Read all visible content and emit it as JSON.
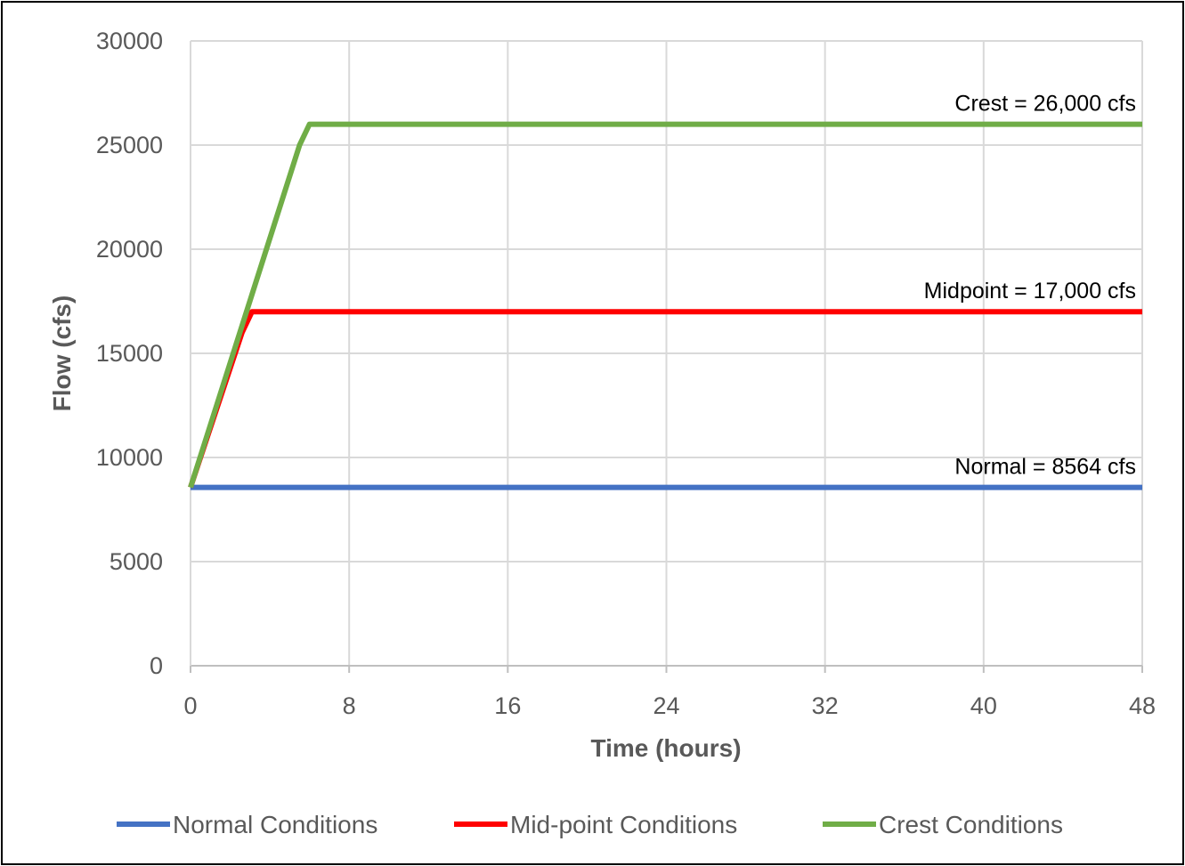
{
  "chart_data": {
    "type": "line",
    "title": "",
    "xlabel": "Time (hours)",
    "ylabel": "Flow (cfs)",
    "xlim": [
      0,
      48
    ],
    "ylim": [
      0,
      30000
    ],
    "xticks": [
      0,
      8,
      16,
      24,
      32,
      40,
      48
    ],
    "yticks": [
      0,
      5000,
      10000,
      15000,
      20000,
      25000,
      30000
    ],
    "x_tick_labels": [
      "0",
      "8",
      "16",
      "24",
      "32",
      "40",
      "48"
    ],
    "y_tick_labels": [
      "0",
      "5000",
      "10000",
      "15000",
      "20000",
      "25000",
      "30000"
    ],
    "grid": true,
    "legend_position": "bottom",
    "series": [
      {
        "name": "Normal Conditions",
        "color": "#4472C4",
        "x": [
          0,
          48
        ],
        "y": [
          8564,
          8564
        ]
      },
      {
        "name": "Mid-point Conditions",
        "color": "#FF0000",
        "x": [
          0,
          2.6,
          3.1,
          48
        ],
        "y": [
          8564,
          16000,
          17000,
          17000
        ]
      },
      {
        "name": "Crest Conditions",
        "color": "#70AD47",
        "x": [
          0,
          5.5,
          6.0,
          48
        ],
        "y": [
          8564,
          25000,
          26000,
          26000
        ]
      }
    ],
    "annotations": [
      {
        "text": "Crest = 26,000 cfs",
        "x": 48,
        "y": 26000
      },
      {
        "text": "Midpoint = 17,000 cfs",
        "x": 48,
        "y": 17000
      },
      {
        "text": "Normal = 8564 cfs",
        "x": 48,
        "y": 8564
      }
    ]
  }
}
